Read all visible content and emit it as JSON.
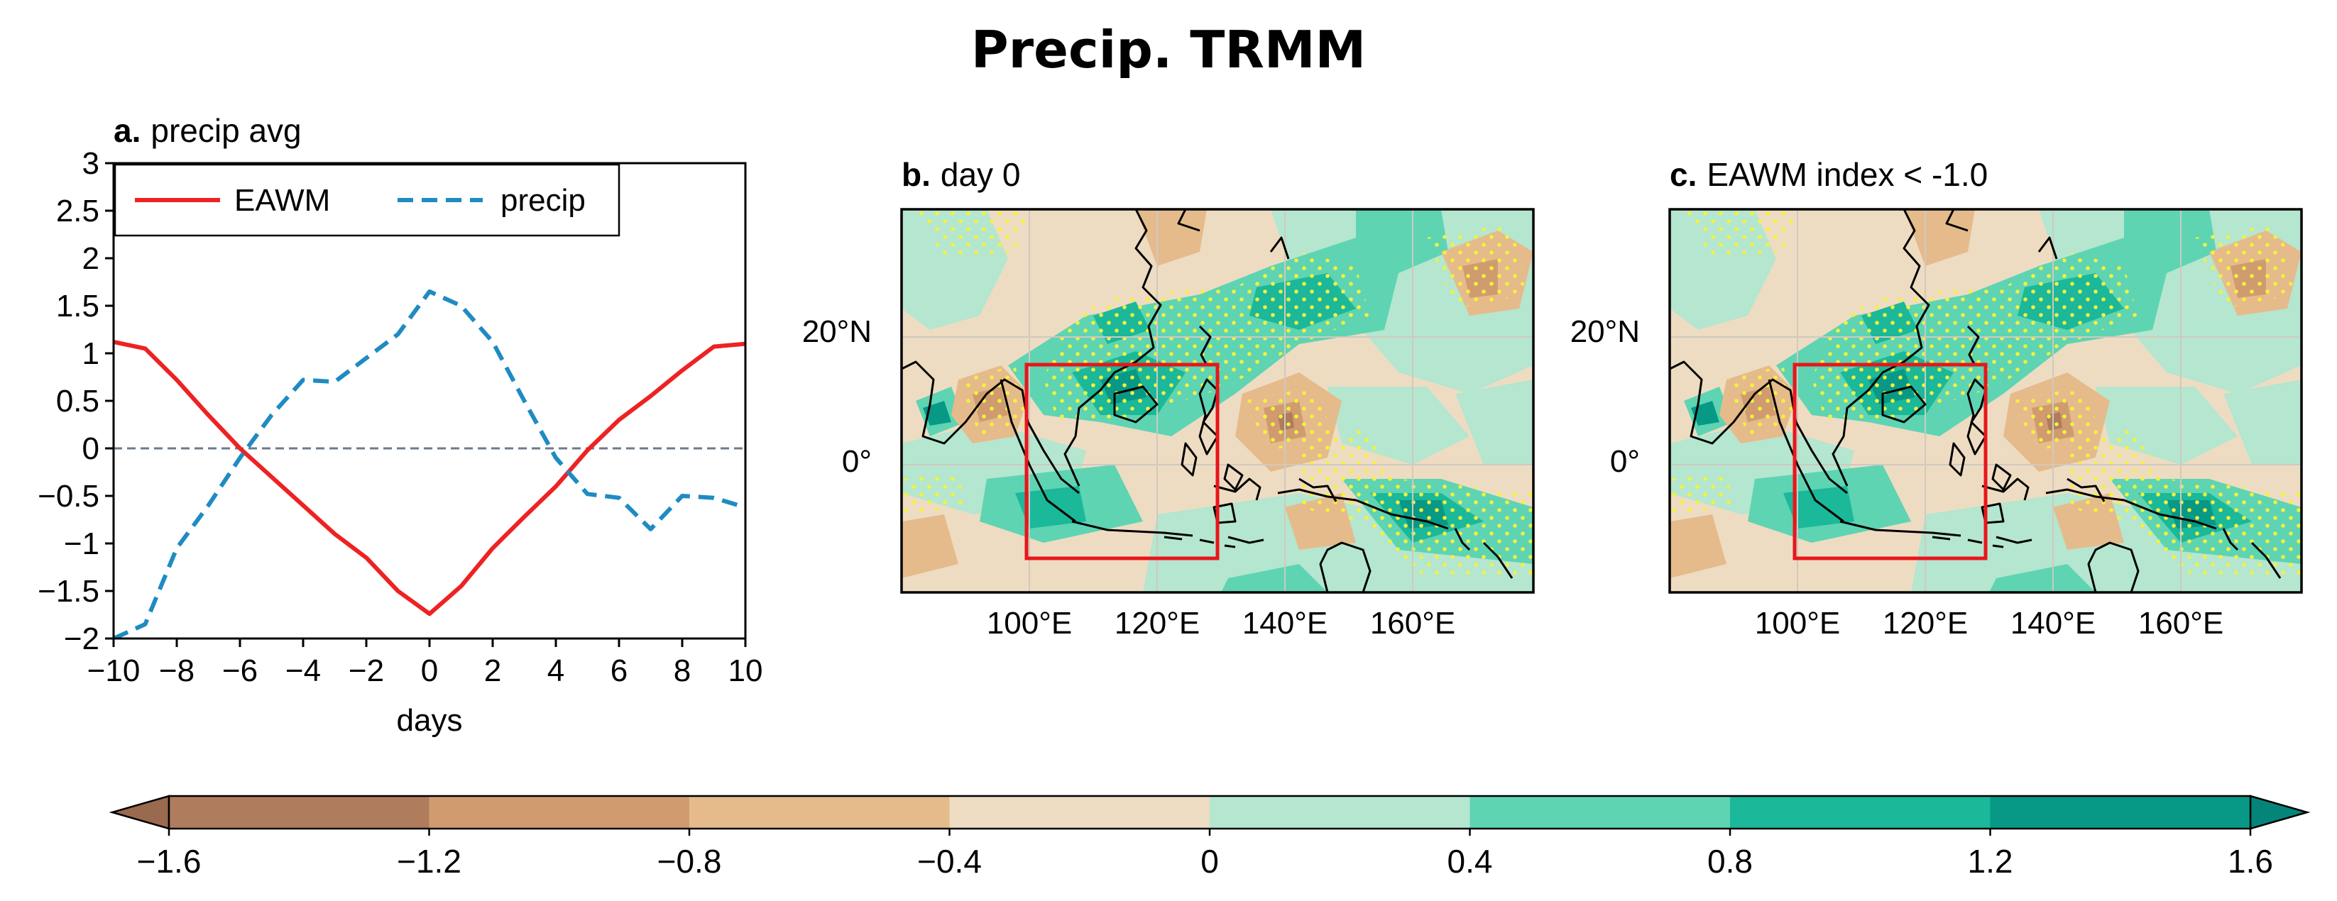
{
  "title": "Precip. TRMM",
  "panels": {
    "a": {
      "letter": "a.",
      "text": "precip avg"
    },
    "b": {
      "letter": "b.",
      "text": "day 0"
    },
    "c": {
      "letter": "c.",
      "text": "EAWM index < -1.0"
    }
  },
  "map_axes": {
    "xticks": [
      "100°E",
      "120°E",
      "140°E",
      "160°E"
    ],
    "yticks": [
      "20°N",
      "0°"
    ]
  },
  "colorbar": {
    "ticks": [
      "−1.6",
      "−1.2",
      "−0.8",
      "−0.4",
      "0",
      "0.4",
      "0.8",
      "1.2",
      "1.6"
    ],
    "colors": [
      "#b07c5e",
      "#d09c6f",
      "#e5bb8c",
      "#eedcc2",
      "#b5e6cf",
      "#5ed4b3",
      "#1bb899",
      "#079985"
    ],
    "extend_low_color": "#9a6a4e",
    "extend_high_color": "#05857a"
  },
  "colors": {
    "eawm": "#ee2222",
    "precip": "#1f8bc2",
    "zero_line": "#6b7b8c",
    "box": "#e8161b",
    "stipple": "#f4f23a"
  },
  "chart_data": {
    "type": "line",
    "title": "precip avg",
    "xlabel": "days",
    "ylabel": "",
    "xlim": [
      -10,
      10
    ],
    "ylim": [
      -2,
      3
    ],
    "xticks": [
      -10,
      -8,
      -6,
      -4,
      -2,
      0,
      2,
      4,
      6,
      8,
      10
    ],
    "yticks": [
      -2,
      -1.5,
      -1,
      -0.5,
      0,
      0.5,
      1,
      1.5,
      2,
      2.5,
      3
    ],
    "xtick_labels": [
      "−10",
      "−8",
      "−6",
      "−4",
      "−2",
      "0",
      "2",
      "4",
      "6",
      "8",
      "10"
    ],
    "ytick_labels": [
      "−2",
      "−1.5",
      "−1",
      "−0.5",
      "0",
      "0.5",
      "1",
      "1.5",
      "2",
      "2.5",
      "3"
    ],
    "legend_position": "top",
    "series": [
      {
        "name": "EAWM",
        "style": "solid",
        "x": [
          -10,
          -9,
          -8,
          -7,
          -6,
          -5,
          -4,
          -3,
          -2,
          -1,
          0,
          1,
          2,
          3,
          4,
          5,
          6,
          7,
          8,
          9,
          10
        ],
        "values": [
          1.12,
          1.05,
          0.72,
          0.35,
          0.0,
          -0.3,
          -0.6,
          -0.9,
          -1.15,
          -1.5,
          -1.74,
          -1.45,
          -1.05,
          -0.72,
          -0.4,
          -0.02,
          0.3,
          0.55,
          0.82,
          1.07,
          1.1
        ]
      },
      {
        "name": "precip",
        "style": "dashed",
        "x": [
          -10,
          -9,
          -8,
          -7,
          -6,
          -5,
          -4,
          -3,
          -2,
          -1,
          0,
          1,
          2,
          3,
          4,
          5,
          6,
          7,
          8,
          9,
          10
        ],
        "values": [
          -2.0,
          -1.85,
          -1.05,
          -0.6,
          -0.1,
          0.35,
          0.72,
          0.7,
          0.95,
          1.2,
          1.65,
          1.5,
          1.12,
          0.5,
          -0.1,
          -0.48,
          -0.52,
          -0.85,
          -0.5,
          -0.52,
          -0.62
        ]
      }
    ]
  }
}
